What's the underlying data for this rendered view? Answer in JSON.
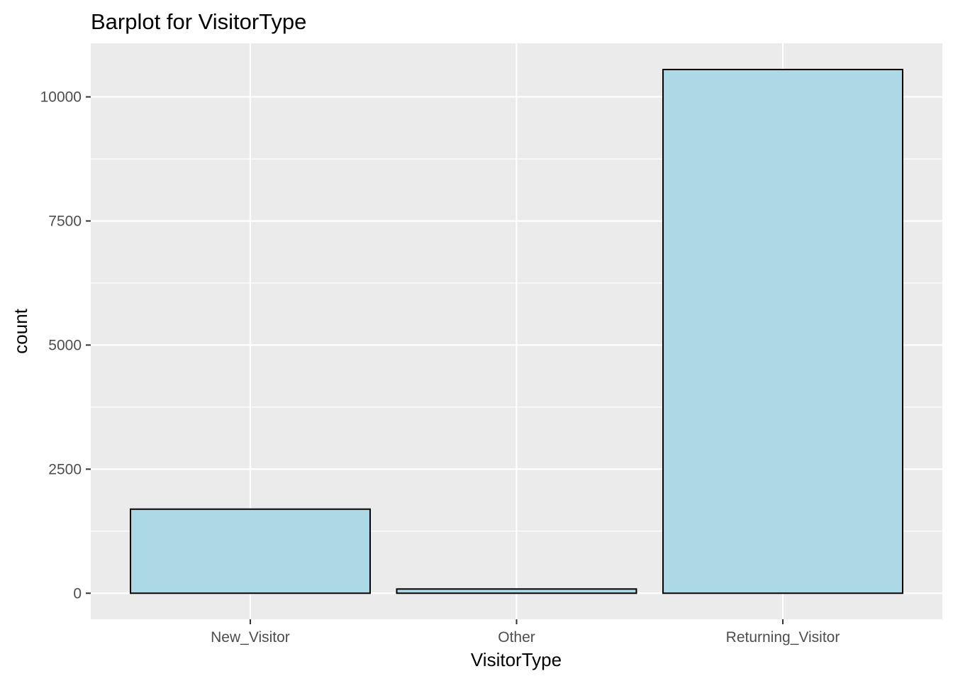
{
  "chart_data": {
    "type": "bar",
    "title": "Barplot for VisitorType",
    "xlabel": "VisitorType",
    "ylabel": "count",
    "categories": [
      "New_Visitor",
      "Other",
      "Returning_Visitor"
    ],
    "values": [
      1694,
      85,
      10551
    ],
    "ylim": [
      -525,
      11080
    ],
    "yticks": [
      0,
      2500,
      5000,
      7500,
      10000
    ],
    "ytick_labels": [
      "0",
      "2500",
      "5000",
      "7500",
      "10000"
    ],
    "grid": true,
    "legend": "none",
    "colors": {
      "panel_background": "#ebebeb",
      "grid": "#ffffff",
      "bar_fill": "#add8e6",
      "bar_outline": "#000000"
    }
  }
}
